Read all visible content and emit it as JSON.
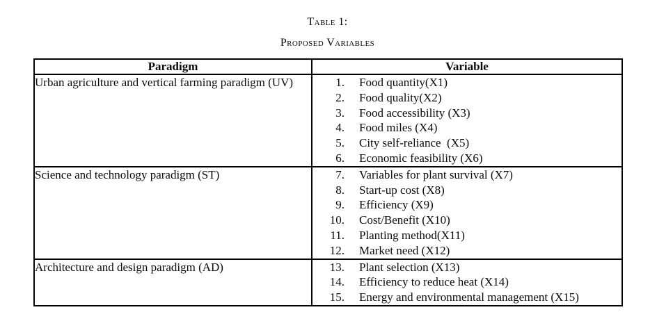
{
  "caption": {
    "line1": "Table 1:",
    "line2": "Proposed Variables"
  },
  "table": {
    "header": [
      "Paradigm",
      "Variable"
    ],
    "rows": [
      {
        "paradigm": "Urban agriculture and vertical farming paradigm (UV)",
        "variables": [
          {
            "num": "1.",
            "label": "Food quantity(X1)"
          },
          {
            "num": "2.",
            "label": "Food quality(X2)"
          },
          {
            "num": "3.",
            "label": "Food accessibility (X3)"
          },
          {
            "num": "4.",
            "label": "Food miles (X4)"
          },
          {
            "num": "5.",
            "label": "City self-reliance  (X5)"
          },
          {
            "num": "6.",
            "label": "Economic feasibility (X6)"
          }
        ]
      },
      {
        "paradigm": "Science and technology paradigm (ST)",
        "variables": [
          {
            "num": "7.",
            "label": "Variables for plant survival (X7)"
          },
          {
            "num": "8.",
            "label": "Start-up cost (X8)"
          },
          {
            "num": "9.",
            "label": "Efficiency (X9)"
          },
          {
            "num": "10.",
            "label": "Cost/Benefit (X10)"
          },
          {
            "num": "11.",
            "label": "Planting method(X11)"
          },
          {
            "num": "12.",
            "label": "Market need (X12)"
          }
        ]
      },
      {
        "paradigm": "Architecture and design paradigm (AD)",
        "variables": [
          {
            "num": "13.",
            "label": "Plant selection (X13)"
          },
          {
            "num": "14.",
            "label": "Efficiency to reduce heat (X14)"
          },
          {
            "num": "15.",
            "label": "Energy and environmental management (X15)"
          }
        ]
      }
    ]
  }
}
